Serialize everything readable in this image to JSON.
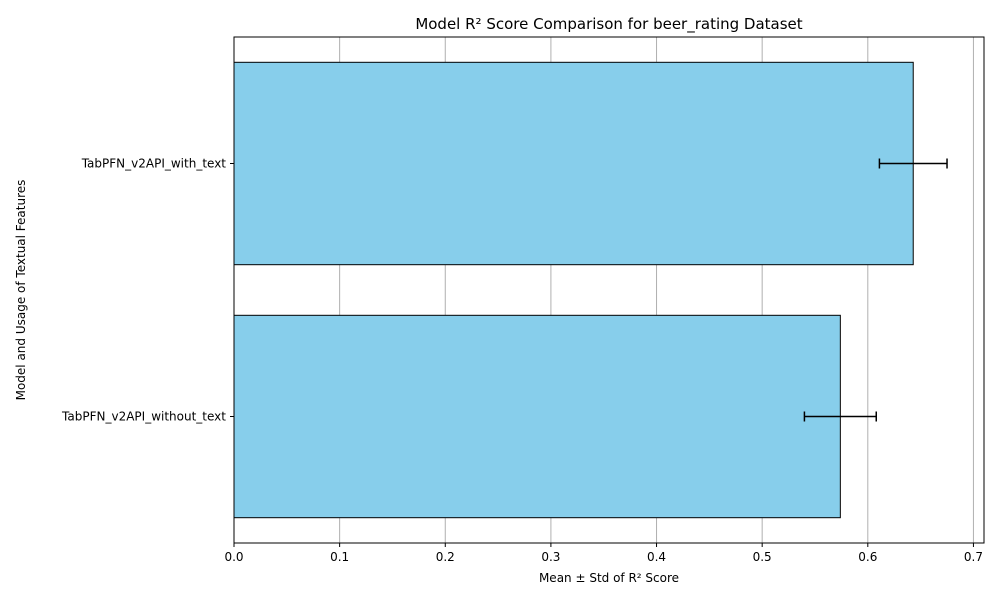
{
  "chart_data": {
    "type": "bar",
    "orientation": "horizontal",
    "title": "Model R² Score Comparison for beer_rating Dataset",
    "xlabel": "Mean ± Std of R² Score",
    "ylabel": "Model and Usage of Textual Features",
    "categories": [
      "TabPFN_v2API_with_text",
      "TabPFN_v2API_without_text"
    ],
    "values": [
      0.643,
      0.574
    ],
    "errors": [
      0.032,
      0.034
    ],
    "xlim": [
      0,
      0.71
    ],
    "xticks": [
      "0.0",
      "0.1",
      "0.2",
      "0.3",
      "0.4",
      "0.5",
      "0.6",
      "0.7"
    ],
    "grid": "x-axis vertical lines",
    "bar_color": "#87ceeb",
    "edge_color": "#000000",
    "grid_color": "#b0b0b0"
  }
}
